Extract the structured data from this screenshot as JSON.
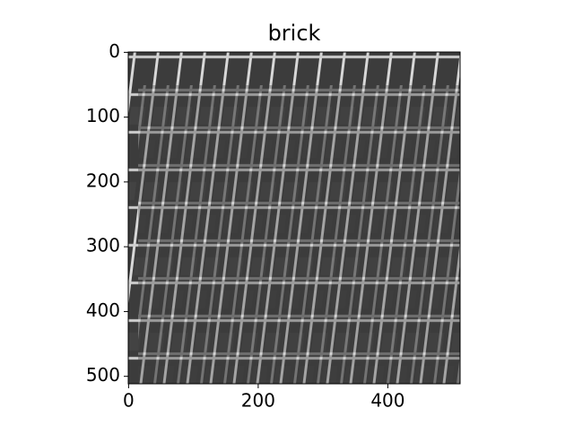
{
  "chart_data": {
    "type": "image",
    "title": "brick",
    "xlim": [
      -0.5,
      511.5
    ],
    "xticks": [
      0,
      200,
      400
    ],
    "ylim": [
      511.5,
      -0.5
    ],
    "yticks": [
      0,
      100,
      200,
      300,
      400,
      500
    ]
  }
}
